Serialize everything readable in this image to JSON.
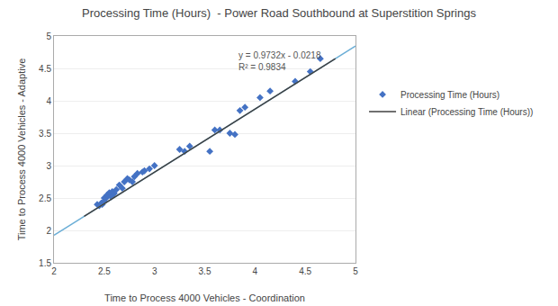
{
  "chart_data": {
    "type": "scatter",
    "title": "Processing Time (Hours)  - Power Road Southbound at Superstition Springs",
    "x_label": "Time to Process 4000 Vehicles - Coordination",
    "y_label": "Time to Process 4000 Vehicles - Adaptive",
    "xlim": [
      2,
      5
    ],
    "ylim": [
      1.5,
      5
    ],
    "xticks": [
      2,
      2.5,
      3,
      3.5,
      4,
      4.5,
      5
    ],
    "yticks": [
      1.5,
      2,
      2.5,
      3,
      3.5,
      4,
      4.5,
      5
    ],
    "grid": "y",
    "legend": "right",
    "series": [
      {
        "name": "Processing Time (Hours)",
        "type": "scatter",
        "color": "#4472C4",
        "marker": "diamond",
        "x": [
          2.43,
          2.45,
          2.47,
          2.48,
          2.49,
          2.5,
          2.5,
          2.52,
          2.53,
          2.55,
          2.57,
          2.58,
          2.6,
          2.62,
          2.65,
          2.68,
          2.7,
          2.73,
          2.75,
          2.78,
          2.8,
          2.83,
          2.88,
          2.9,
          2.95,
          3.0,
          3.25,
          3.3,
          3.35,
          3.55,
          3.6,
          3.65,
          3.75,
          3.8,
          3.85,
          3.9,
          4.05,
          4.15,
          4.4,
          4.55,
          4.65
        ],
        "values": [
          2.4,
          2.38,
          2.42,
          2.4,
          2.43,
          2.5,
          2.45,
          2.5,
          2.55,
          2.58,
          2.52,
          2.6,
          2.57,
          2.63,
          2.7,
          2.65,
          2.75,
          2.8,
          2.78,
          2.75,
          2.83,
          2.88,
          2.9,
          2.92,
          2.95,
          3.0,
          3.25,
          3.22,
          3.3,
          3.22,
          3.55,
          3.55,
          3.5,
          3.48,
          3.85,
          3.9,
          4.05,
          4.15,
          4.3,
          4.45,
          4.65
        ]
      },
      {
        "type": "line",
        "color": "#6baed6",
        "line_style": "solid",
        "x": [
          2,
          5
        ],
        "values": [
          1.9246,
          4.8442
        ]
      },
      {
        "name": "Linear (Processing Time (Hours))",
        "type": "line",
        "color": "#404040",
        "line_style": "solid",
        "x": [
          2.3,
          4.8
        ],
        "values": [
          2.21656,
          4.64956
        ]
      }
    ],
    "annotations": [
      {
        "text": "y = 0.9732x - 0.0218\nR² = 0.9834",
        "x": 3.82,
        "y": 4.42
      }
    ]
  }
}
